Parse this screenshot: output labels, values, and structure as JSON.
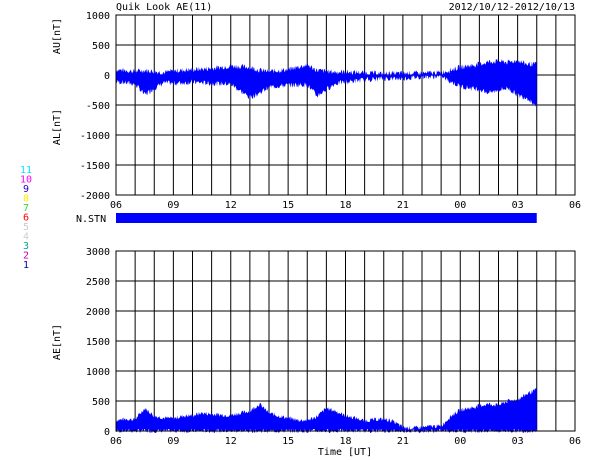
{
  "header": {
    "title": "Quik Look AE(11)",
    "date_range": "2012/10/12-2012/10/13"
  },
  "colors": {
    "fill": "#0000ff",
    "grid": "#000000",
    "background": "#ffffff"
  },
  "station_legend": {
    "label": "N.STN",
    "items": [
      {
        "label": "11",
        "color": "#00e5ff"
      },
      {
        "label": "10",
        "color": "#ff00ff"
      },
      {
        "label": "9",
        "color": "#2200cc"
      },
      {
        "label": "8",
        "color": "#ffee00"
      },
      {
        "label": "7",
        "color": "#33dd33"
      },
      {
        "label": "6",
        "color": "#ff0000"
      },
      {
        "label": "5",
        "color": "#cccccc"
      },
      {
        "label": "4",
        "color": "#cccccc"
      },
      {
        "label": "3",
        "color": "#00aa88"
      },
      {
        "label": "2",
        "color": "#cc00aa"
      },
      {
        "label": "1",
        "color": "#0000aa"
      }
    ]
  },
  "chart_data": [
    {
      "type": "area",
      "name": "AU/AL",
      "ylabel_upper": "AU[nT]",
      "ylabel_lower": "AL[nT]",
      "ylim": [
        -2000,
        1000
      ],
      "yticks": [
        1000,
        500,
        0,
        -500,
        -1000,
        -1500,
        -2000
      ],
      "xticks": [
        "06",
        "09",
        "12",
        "15",
        "18",
        "21",
        "00",
        "03",
        "06"
      ],
      "grid": true,
      "x_hours": [
        0,
        1,
        1.5,
        2,
        2.5,
        3,
        4,
        5,
        6,
        7,
        7.5,
        8,
        9,
        10,
        10.5,
        11,
        11.5,
        12,
        13,
        14,
        15,
        16,
        17,
        18,
        19,
        19.5,
        20,
        20.5,
        21,
        21.5,
        22
      ],
      "au": [
        90,
        60,
        80,
        60,
        40,
        70,
        90,
        110,
        150,
        130,
        80,
        60,
        90,
        170,
        80,
        60,
        50,
        50,
        40,
        20,
        30,
        30,
        40,
        130,
        180,
        220,
        230,
        210,
        240,
        180,
        180
      ],
      "al": [
        -110,
        -150,
        -330,
        -220,
        -130,
        -140,
        -120,
        -140,
        -150,
        -380,
        -300,
        -200,
        -170,
        -160,
        -350,
        -240,
        -140,
        -120,
        -80,
        -60,
        -60,
        -30,
        -30,
        -190,
        -240,
        -300,
        -250,
        -220,
        -340,
        -380,
        -520
      ]
    },
    {
      "type": "bar",
      "name": "N.STN",
      "x_hours": [
        0,
        22
      ],
      "values": [
        11
      ]
    },
    {
      "type": "area",
      "name": "AE",
      "ylabel": "AE[nT]",
      "xlabel": "Time [UT]",
      "ylim": [
        0,
        3000
      ],
      "yticks": [
        3000,
        2500,
        2000,
        1500,
        1000,
        500,
        0
      ],
      "xticks": [
        "06",
        "09",
        "12",
        "15",
        "18",
        "21",
        "00",
        "03",
        "06"
      ],
      "grid": true,
      "x_hours": [
        0,
        0.5,
        1,
        1.5,
        2,
        2.5,
        3,
        3.5,
        4,
        4.5,
        5,
        5.5,
        6,
        6.5,
        7,
        7.5,
        8,
        8.5,
        9,
        9.5,
        10,
        10.5,
        11,
        11.5,
        12,
        12.5,
        13,
        13.5,
        14,
        14.5,
        15,
        15.5,
        16,
        16.5,
        17,
        17.5,
        18,
        18.5,
        19,
        19.5,
        20,
        20.5,
        21,
        21.5,
        22
      ],
      "values": [
        180,
        200,
        190,
        380,
        250,
        220,
        210,
        250,
        260,
        300,
        280,
        270,
        260,
        300,
        330,
        450,
        300,
        250,
        220,
        180,
        180,
        240,
        380,
        330,
        250,
        220,
        170,
        190,
        200,
        160,
        60,
        50,
        60,
        80,
        80,
        250,
        350,
        380,
        420,
        450,
        430,
        500,
        520,
        620,
        690
      ]
    }
  ]
}
